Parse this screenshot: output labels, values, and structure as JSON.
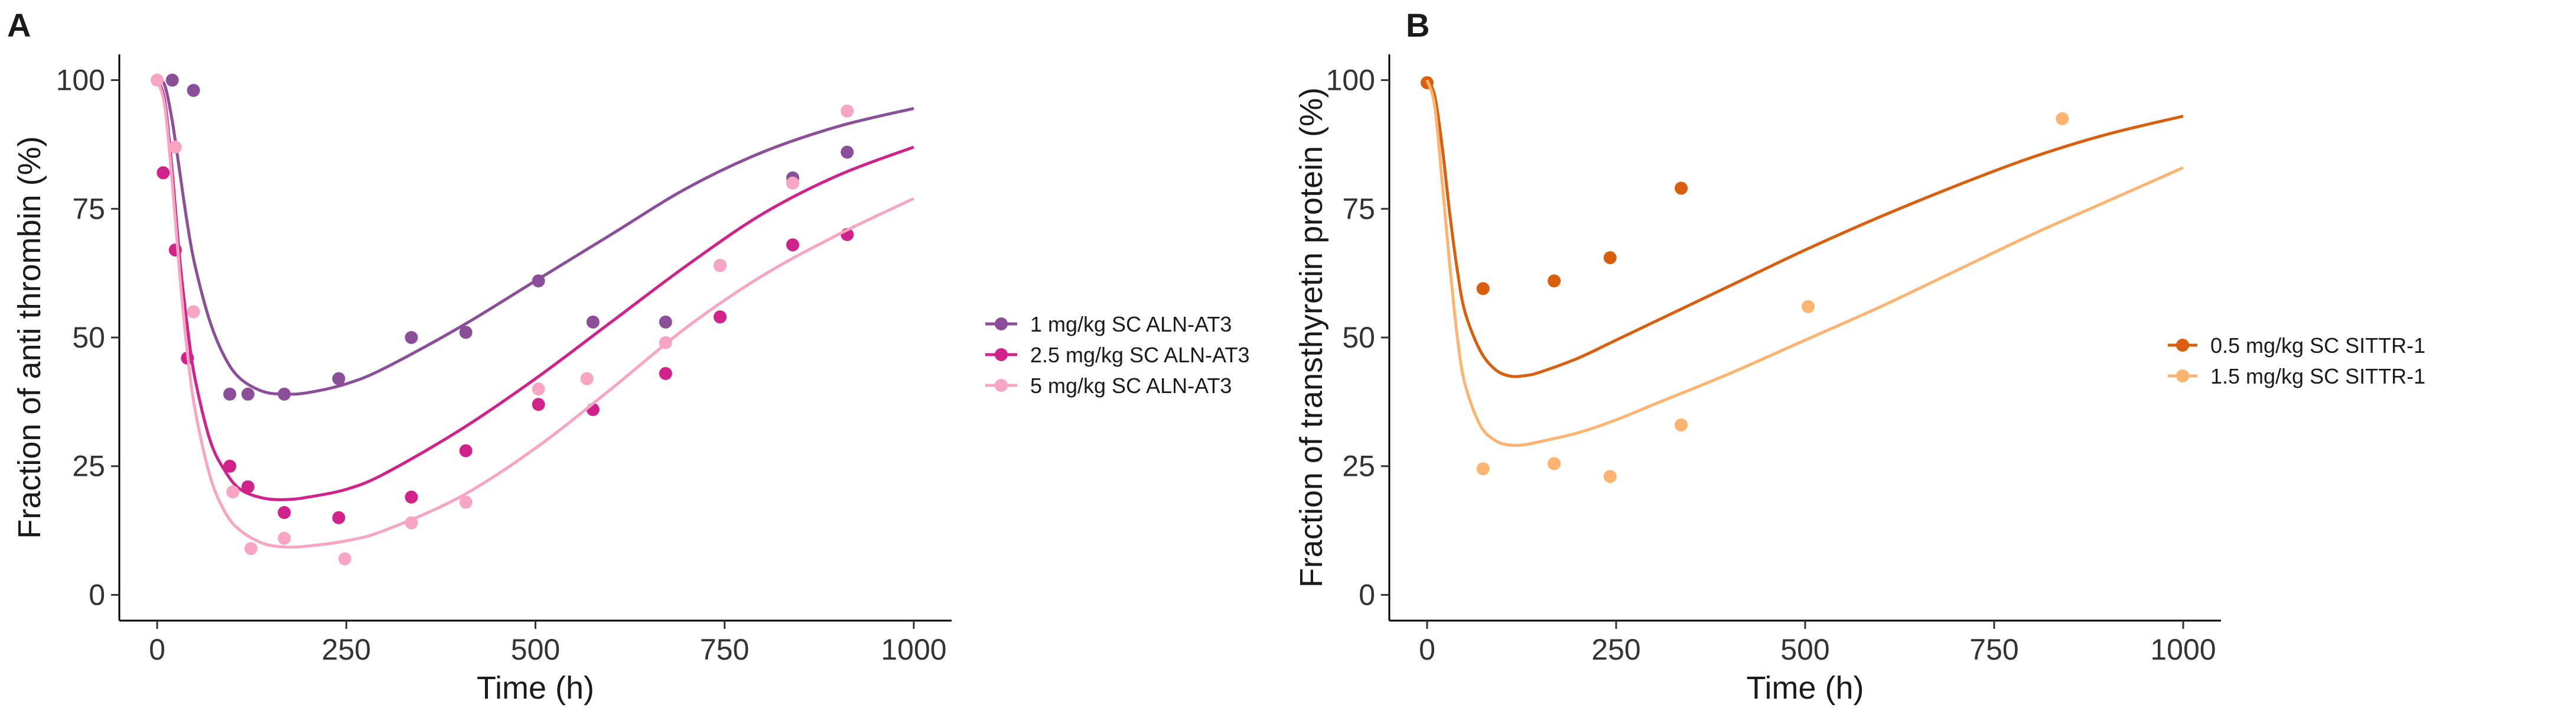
{
  "chart_data": [
    {
      "type": "scatter",
      "panel": "A",
      "title": "",
      "xlabel": "Time (h)",
      "ylabel": "Fraction of anti thrombin (%)",
      "xlim": [
        -50,
        1050
      ],
      "ylim": [
        -5,
        105
      ],
      "xticks": [
        0,
        250,
        500,
        750,
        1000
      ],
      "yticks": [
        0,
        25,
        50,
        75,
        100
      ],
      "legend_position": "right",
      "grid": false,
      "series": [
        {
          "name": "1 mg/kg SC ALN-AT3",
          "color": "#8B4F9A",
          "points": [
            [
              20,
              100
            ],
            [
              48,
              98
            ],
            [
              96,
              39
            ],
            [
              120,
              39
            ],
            [
              168,
              39
            ],
            [
              240,
              42
            ],
            [
              336,
              50
            ],
            [
              408,
              51
            ],
            [
              504,
              61
            ],
            [
              576,
              53
            ],
            [
              672,
              53
            ],
            [
              744,
              64
            ],
            [
              840,
              81
            ],
            [
              912,
              86
            ]
          ],
          "fit": [
            [
              0,
              100
            ],
            [
              10,
              99
            ],
            [
              20,
              92
            ],
            [
              30,
              82
            ],
            [
              40,
              72
            ],
            [
              50,
              64
            ],
            [
              70,
              53
            ],
            [
              90,
              46
            ],
            [
              110,
              42
            ],
            [
              140,
              39.5
            ],
            [
              170,
              39
            ],
            [
              200,
              39.3
            ],
            [
              250,
              41
            ],
            [
              300,
              44
            ],
            [
              400,
              52
            ],
            [
              500,
              61
            ],
            [
              600,
              70
            ],
            [
              700,
              79
            ],
            [
              800,
              86
            ],
            [
              900,
              91
            ],
            [
              1000,
              94.5
            ]
          ]
        },
        {
          "name": "2.5 mg/kg SC ALN-AT3",
          "color": "#D0228A",
          "points": [
            [
              8,
              82
            ],
            [
              24,
              67
            ],
            [
              40,
              46
            ],
            [
              96,
              25
            ],
            [
              120,
              21
            ],
            [
              168,
              16
            ],
            [
              240,
              15
            ],
            [
              336,
              19
            ],
            [
              408,
              28
            ],
            [
              504,
              37
            ],
            [
              576,
              36
            ],
            [
              672,
              43
            ],
            [
              744,
              54
            ],
            [
              840,
              68
            ],
            [
              912,
              70
            ]
          ],
          "fit": [
            [
              0,
              100
            ],
            [
              10,
              96
            ],
            [
              20,
              82
            ],
            [
              30,
              65
            ],
            [
              40,
              52
            ],
            [
              50,
              42
            ],
            [
              70,
              30
            ],
            [
              90,
              24
            ],
            [
              110,
              20.5
            ],
            [
              140,
              18.8
            ],
            [
              170,
              18.5
            ],
            [
              200,
              19
            ],
            [
              250,
              20.5
            ],
            [
              300,
              23.5
            ],
            [
              400,
              32
            ],
            [
              500,
              42
            ],
            [
              600,
              53
            ],
            [
              700,
              64
            ],
            [
              800,
              74
            ],
            [
              900,
              81.5
            ],
            [
              1000,
              87
            ]
          ]
        },
        {
          "name": "5 mg/kg SC ALN-AT3",
          "color": "#F7A5C2",
          "points": [
            [
              0,
              100
            ],
            [
              24,
              87
            ],
            [
              48,
              55
            ],
            [
              100,
              20
            ],
            [
              124,
              9
            ],
            [
              168,
              11
            ],
            [
              248,
              7
            ],
            [
              336,
              14
            ],
            [
              408,
              18
            ],
            [
              504,
              40
            ],
            [
              568,
              42
            ],
            [
              672,
              49
            ],
            [
              744,
              64
            ],
            [
              840,
              80
            ],
            [
              912,
              94
            ]
          ],
          "fit": [
            [
              0,
              100
            ],
            [
              10,
              95
            ],
            [
              20,
              80
            ],
            [
              30,
              62
            ],
            [
              40,
              47
            ],
            [
              50,
              36
            ],
            [
              70,
              23
            ],
            [
              90,
              16
            ],
            [
              110,
              12.5
            ],
            [
              140,
              10
            ],
            [
              170,
              9.3
            ],
            [
              200,
              9.5
            ],
            [
              250,
              10.5
            ],
            [
              300,
              12.5
            ],
            [
              400,
              19
            ],
            [
              500,
              28.5
            ],
            [
              600,
              40
            ],
            [
              700,
              52
            ],
            [
              800,
              62
            ],
            [
              900,
              70
            ],
            [
              1000,
              77
            ]
          ]
        }
      ]
    },
    {
      "type": "scatter",
      "panel": "B",
      "title": "",
      "xlabel": "Time (h)",
      "ylabel": "Fraction of transthyretin protein (%)",
      "xlim": [
        -50,
        1050
      ],
      "ylim": [
        -5,
        105
      ],
      "xticks": [
        0,
        250,
        500,
        750,
        1000
      ],
      "yticks": [
        0,
        25,
        50,
        75,
        100
      ],
      "legend_position": "right",
      "grid": false,
      "series": [
        {
          "name": "0.5 mg/kg SC SITTR-1",
          "color": "#D95F0E",
          "points": [
            [
              0,
              99.5
            ],
            [
              74,
              59.5
            ],
            [
              168,
              61
            ],
            [
              242,
              65.5
            ],
            [
              336,
              79
            ]
          ],
          "fit": [
            [
              0,
              100
            ],
            [
              10,
              97
            ],
            [
              20,
              87
            ],
            [
              30,
              74
            ],
            [
              40,
              63
            ],
            [
              50,
              55
            ],
            [
              70,
              47.5
            ],
            [
              90,
              43.8
            ],
            [
              110,
              42.5
            ],
            [
              130,
              42.6
            ],
            [
              150,
              43.3
            ],
            [
              200,
              46
            ],
            [
              250,
              49.5
            ],
            [
              300,
              53
            ],
            [
              400,
              60
            ],
            [
              500,
              67
            ],
            [
              600,
              73.5
            ],
            [
              700,
              79.5
            ],
            [
              800,
              85
            ],
            [
              900,
              89.5
            ],
            [
              1000,
              93
            ]
          ]
        },
        {
          "name": "1.5 mg/kg SC SITTR-1",
          "color": "#FDB471",
          "points": [
            [
              74,
              24.5
            ],
            [
              168,
              25.5
            ],
            [
              242,
              23
            ],
            [
              336,
              33
            ],
            [
              504,
              56
            ],
            [
              840,
              92.5
            ]
          ],
          "fit": [
            [
              0,
              100
            ],
            [
              10,
              95
            ],
            [
              20,
              80
            ],
            [
              30,
              64
            ],
            [
              40,
              50
            ],
            [
              50,
              41
            ],
            [
              70,
              33
            ],
            [
              90,
              30
            ],
            [
              110,
              29.1
            ],
            [
              130,
              29.2
            ],
            [
              150,
              29.8
            ],
            [
              200,
              31.5
            ],
            [
              250,
              34
            ],
            [
              300,
              37
            ],
            [
              400,
              43
            ],
            [
              500,
              49.5
            ],
            [
              600,
              56
            ],
            [
              700,
              63
            ],
            [
              800,
              70
            ],
            [
              900,
              76.5
            ],
            [
              1000,
              83
            ]
          ]
        }
      ]
    }
  ]
}
